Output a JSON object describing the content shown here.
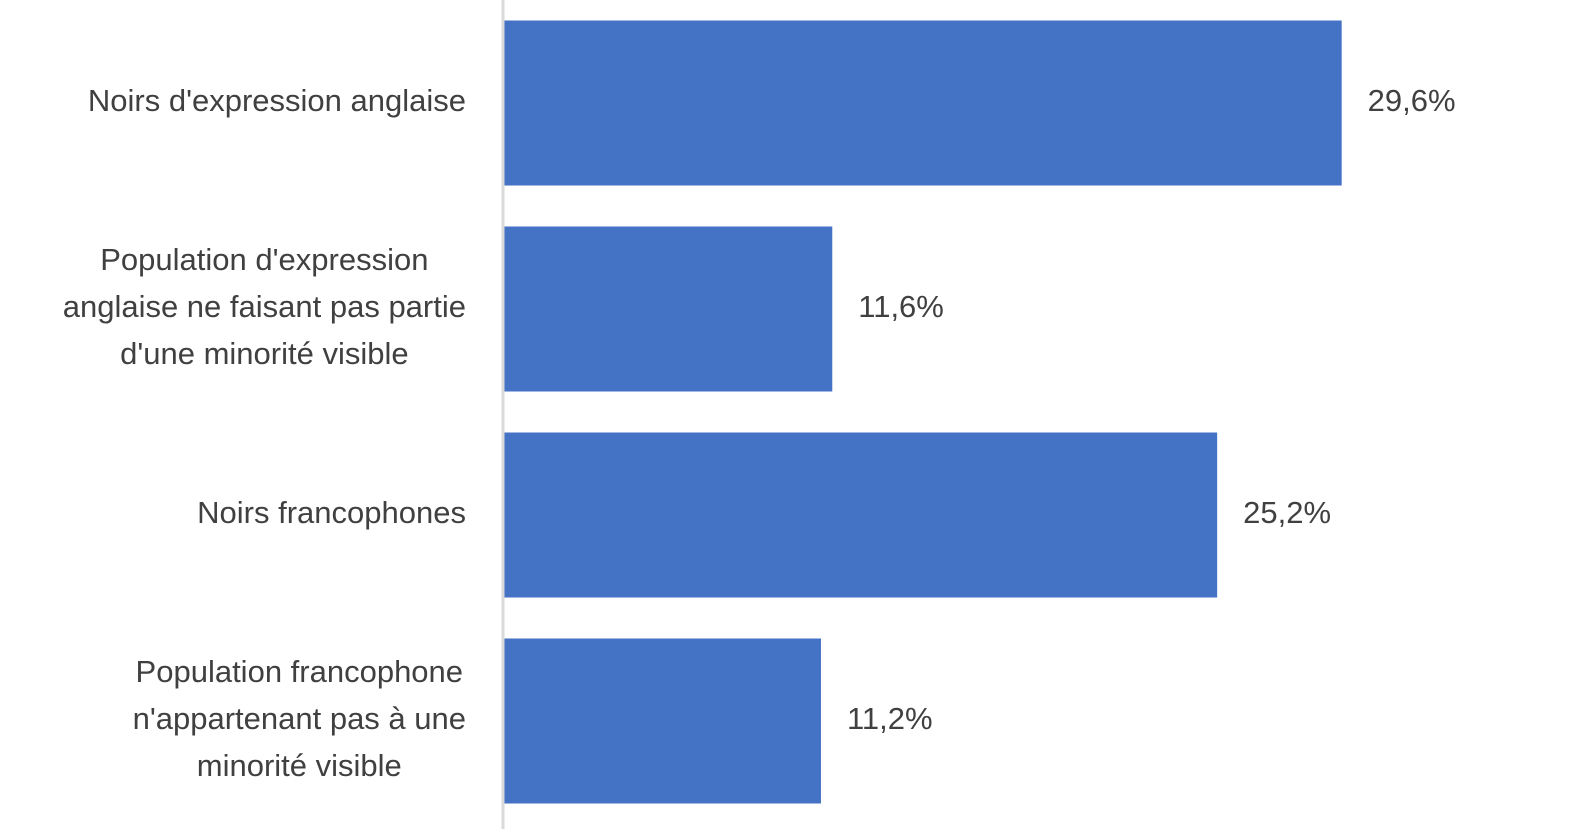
{
  "chart_data": {
    "type": "bar",
    "orientation": "horizontal",
    "title": "",
    "xlabel": "",
    "ylabel": "",
    "categories": [
      "Noirs d'expression anglaise",
      "Population d'expression anglaise ne faisant pas partie d'une minorité visible",
      "Noirs francophones",
      "Population francophone n'appartenant pas à une minorité visible"
    ],
    "category_lines": [
      [
        "Noirs d'expression anglaise"
      ],
      [
        "Population d'expression",
        "anglaise ne faisant pas partie",
        "d'une minorité visible"
      ],
      [
        "Noirs francophones"
      ],
      [
        "Population francophone",
        "n'appartenant pas à une",
        "minorité visible"
      ]
    ],
    "values": [
      29.6,
      11.6,
      25.2,
      11.2
    ],
    "value_labels": [
      "29,6%",
      "11,6%",
      "25,2%",
      "11,2%"
    ],
    "unit": "%",
    "xlim": [
      0,
      30
    ],
    "grid": false,
    "legend": "none",
    "colors": {
      "bar": "#4472C4",
      "axis": "#D9D9D9",
      "text": "#404040"
    }
  }
}
